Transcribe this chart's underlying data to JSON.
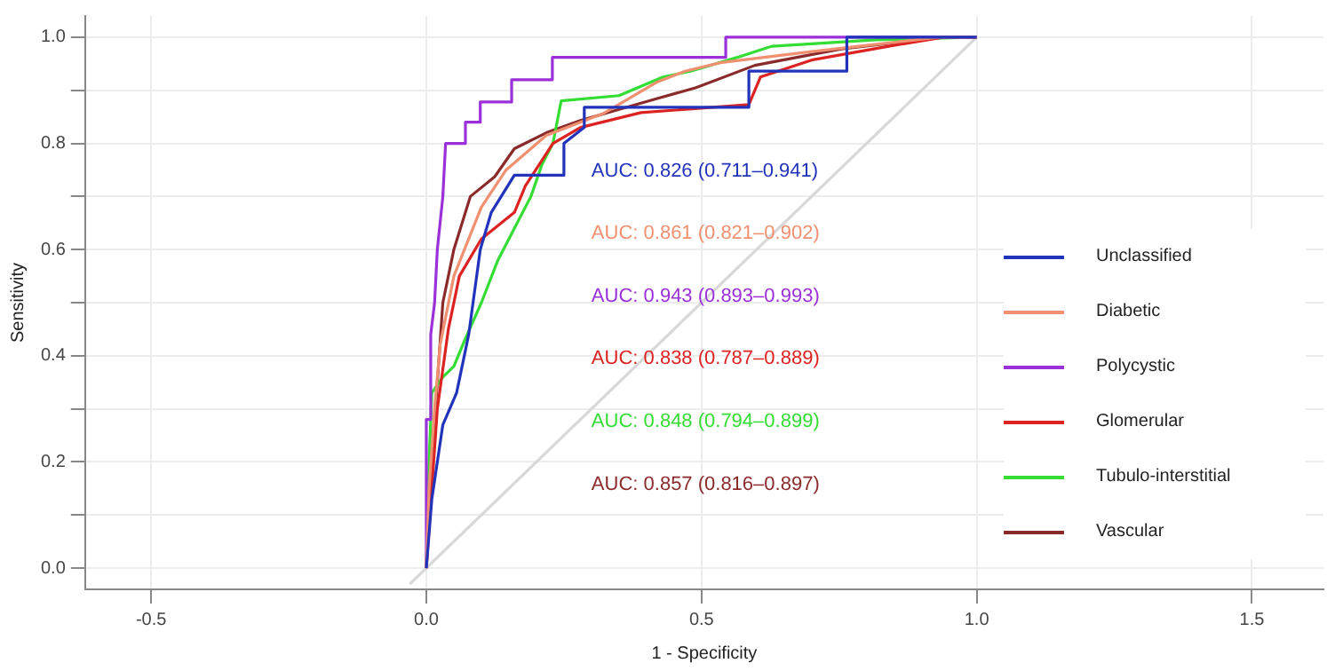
{
  "chart_data": {
    "type": "line",
    "xlabel": "1 - Specificity",
    "ylabel": "Sensitivity",
    "xlim": [
      -0.62,
      1.63
    ],
    "ylim": [
      -0.04,
      1.04
    ],
    "xticks": [
      {
        "value": -0.5,
        "label": "-0.5"
      },
      {
        "value": 0,
        "label": "0.0"
      },
      {
        "value": 0.5,
        "label": "0.5"
      },
      {
        "value": 1,
        "label": "1.0"
      },
      {
        "value": 1.5,
        "label": "1.5"
      }
    ],
    "yticks": [
      {
        "value": 0,
        "label": "0.0"
      },
      {
        "value": 0.1,
        "label": null
      },
      {
        "value": 0.2,
        "label": "0.2"
      },
      {
        "value": 0.3,
        "label": null
      },
      {
        "value": 0.4,
        "label": "0.4"
      },
      {
        "value": 0.5,
        "label": null
      },
      {
        "value": 0.6,
        "label": "0.6"
      },
      {
        "value": 0.7,
        "label": null
      },
      {
        "value": 0.8,
        "label": "0.8"
      },
      {
        "value": 0.9,
        "label": null
      },
      {
        "value": 1,
        "label": "1.0"
      }
    ],
    "grid": true,
    "legend": "right",
    "marker": "none",
    "series": [
      {
        "name": "Unclassified",
        "color": "#2233bb",
        "x": [
          0,
          0.01,
          0.03,
          0.055,
          0.077,
          0.098,
          0.118,
          0.16,
          0.25,
          0.25,
          0.287,
          0.287,
          0.586,
          0.586,
          0.764,
          0.764,
          1
        ],
        "values": [
          0,
          0.13,
          0.27,
          0.33,
          0.44,
          0.6,
          0.67,
          0.74,
          0.74,
          0.8,
          0.83,
          0.868,
          0.868,
          0.936,
          0.936,
          1,
          1
        ]
      },
      {
        "name": "Diabetic",
        "color": "#f09070",
        "x": [
          0,
          0.005,
          0.015,
          0.025,
          0.05,
          0.1,
          0.145,
          0.218,
          0.323,
          0.418,
          0.47,
          0.534,
          0.7,
          0.933,
          1
        ],
        "values": [
          0,
          0.15,
          0.3,
          0.42,
          0.55,
          0.68,
          0.75,
          0.815,
          0.857,
          0.915,
          0.936,
          0.952,
          0.973,
          1,
          1
        ]
      },
      {
        "name": "Polycystic",
        "color": "#9b30d9",
        "x": [
          0,
          0,
          0.008,
          0.008,
          0.015,
          0.02,
          0.03,
          0.035,
          0.071,
          0.071,
          0.098,
          0.098,
          0.155,
          0.155,
          0.229,
          0.229,
          0.544,
          0.544,
          1
        ],
        "values": [
          0,
          0.28,
          0.28,
          0.44,
          0.5,
          0.6,
          0.7,
          0.8,
          0.8,
          0.84,
          0.84,
          0.878,
          0.878,
          0.92,
          0.92,
          0.962,
          0.962,
          1,
          1
        ]
      },
      {
        "name": "Glomerular",
        "color": "#dd2222",
        "x": [
          0,
          0.01,
          0.02,
          0.04,
          0.06,
          0.1,
          0.16,
          0.18,
          0.23,
          0.28,
          0.39,
          0.586,
          0.607,
          0.7,
          0.84,
          0.94,
          1
        ],
        "values": [
          0,
          0.15,
          0.3,
          0.45,
          0.55,
          0.62,
          0.67,
          0.72,
          0.8,
          0.83,
          0.858,
          0.873,
          0.925,
          0.957,
          0.983,
          1,
          1
        ]
      },
      {
        "name": "Tubulo-interstitial",
        "color": "#33dd33",
        "x": [
          0,
          0.005,
          0.01,
          0.03,
          0.05,
          0.07,
          0.1,
          0.13,
          0.16,
          0.19,
          0.21,
          0.23,
          0.245,
          0.35,
          0.43,
          0.48,
          0.565,
          0.628,
          0.817,
          1
        ],
        "values": [
          0,
          0.2,
          0.33,
          0.36,
          0.38,
          0.43,
          0.5,
          0.58,
          0.64,
          0.7,
          0.76,
          0.8,
          0.88,
          0.89,
          0.925,
          0.936,
          0.962,
          0.983,
          0.995,
          1
        ]
      },
      {
        "name": "Vascular",
        "color": "#8b2a2a",
        "x": [
          0,
          0.01,
          0.02,
          0.03,
          0.05,
          0.08,
          0.124,
          0.16,
          0.218,
          0.28,
          0.418,
          0.49,
          0.597,
          0.754,
          0.94,
          1
        ],
        "values": [
          0,
          0.2,
          0.35,
          0.5,
          0.6,
          0.7,
          0.737,
          0.79,
          0.82,
          0.843,
          0.884,
          0.905,
          0.947,
          0.978,
          1,
          1
        ]
      },
      {
        "color": "#d8d8d8",
        "x": [
          -0.03,
          1
        ],
        "values": [
          -0.03,
          1
        ]
      }
    ],
    "annotations": [
      "AUC: 0.826 (0.711–0.941)",
      "AUC: 0.861 (0.821–0.902)",
      "AUC: 0.943 (0.893–0.993)",
      "AUC: 0.838 (0.787–0.889)",
      "AUC: 0.848 (0.794–0.899)",
      "AUC: 0.857 (0.816–0.897)"
    ]
  }
}
